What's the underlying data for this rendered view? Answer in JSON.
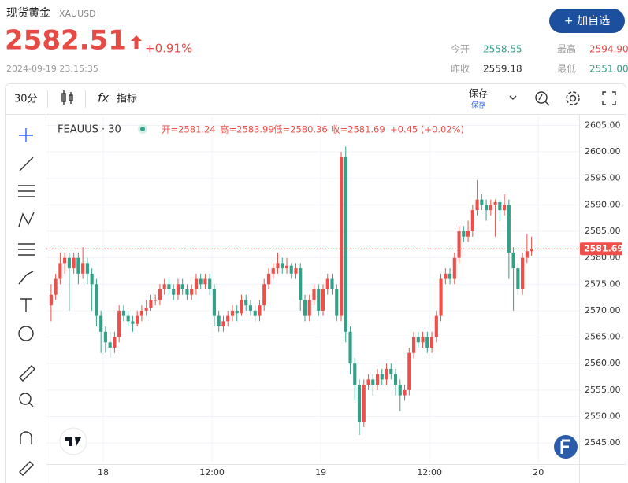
{
  "header": {
    "title": "现货黄金",
    "symbol": "XAUUSD",
    "price": "2582.51",
    "change": "+0.91%",
    "timestamp": "2024-09-19 23:15:35",
    "button": "+ 加自选",
    "stats": [
      {
        "label": "今开",
        "value": "2558.55"
      },
      {
        "label": "最高",
        "value": "2594.90"
      },
      {
        "label": "昨收",
        "value": "2559.18"
      },
      {
        "label": "最低",
        "value": "2551.00"
      }
    ]
  },
  "toolbar": {
    "interval": "30分",
    "indicators_icon": "fx",
    "indicators": "指标",
    "save": "保存",
    "save_sub": "保存"
  },
  "chart_data": {
    "type": "candlestick",
    "title": "FEAUUS · 30",
    "ohlc_legend": [
      "开=2581.24",
      "高=2583.99",
      "低=2580.36",
      "收=2581.69",
      "+0.45 (+0.02%)"
    ],
    "up_color": "#ef4f4a",
    "down_color": "#34a088",
    "grid": true,
    "x": [
      0,
      1,
      2,
      3,
      4,
      5,
      6,
      7,
      8,
      9,
      10,
      11,
      12,
      13,
      14,
      15,
      16,
      17,
      18,
      19,
      20,
      21,
      22,
      23,
      24,
      25,
      26,
      27,
      28,
      29,
      30,
      31,
      32,
      33,
      34,
      35,
      36,
      37,
      38,
      39,
      40,
      41,
      42,
      43,
      44,
      45,
      46,
      47,
      48,
      49,
      50,
      51,
      52,
      53,
      54,
      55,
      56,
      57,
      58,
      59,
      60,
      61,
      62,
      63,
      64,
      65,
      66,
      67,
      68,
      69,
      70,
      71,
      72,
      73,
      74,
      75,
      76,
      77,
      78,
      79,
      80,
      81,
      82,
      83,
      84,
      85,
      86,
      87,
      88,
      89,
      90,
      91,
      92,
      93,
      94,
      95,
      96,
      97,
      98,
      99,
      100,
      101,
      102,
      103,
      104,
      105,
      106
    ],
    "open": [
      2571,
      2573,
      2576,
      2579,
      2580,
      2578,
      2580,
      2577,
      2579,
      2577,
      2575,
      2569,
      2566,
      2564,
      2563,
      2565,
      2570,
      2569,
      2568,
      2567.5,
      2569,
      2570,
      2570.5,
      2572,
      2572,
      2574,
      2575,
      2574,
      2573,
      2575,
      2574,
      2573,
      2574,
      2576,
      2575,
      2576,
      2574,
      2569,
      2567,
      2568,
      2569,
      2570,
      2569.5,
      2572,
      2571,
      2570,
      2569,
      2571,
      2575,
      2577,
      2578,
      2579,
      2578,
      2578.5,
      2577,
      2578,
      2572,
      2569,
      2572,
      2574,
      2570,
      2574,
      2576,
      2574,
      2569,
      2599,
      2566,
      2560,
      2556,
      2549,
      2556,
      2557,
      2556,
      2558,
      2557,
      2559,
      2558,
      2556,
      2554,
      2555,
      2562,
      2565,
      2564,
      2565,
      2563,
      2565,
      2569,
      2576,
      2577,
      2576,
      2580,
      2585,
      2584,
      2585,
      2589,
      2591,
      2590,
      2589,
      2590,
      2590.5,
      2589,
      2590,
      2581,
      2578,
      2574,
      2580,
      2581.24
    ],
    "high": [
      2575,
      2577,
      2581,
      2581,
      2581,
      2581,
      2581,
      2582,
      2580,
      2578,
      2576,
      2570,
      2567,
      2566,
      2566,
      2571,
      2571,
      2570,
      2569,
      2570,
      2571,
      2572,
      2573,
      2573,
      2575,
      2576,
      2576,
      2575,
      2576,
      2576,
      2575,
      2575,
      2577,
      2577,
      2577,
      2577,
      2575,
      2570,
      2569,
      2570,
      2571,
      2571,
      2573,
      2573,
      2572,
      2571,
      2572,
      2576,
      2578,
      2579,
      2581,
      2580,
      2580,
      2579,
      2579,
      2579,
      2573,
      2573,
      2575,
      2575,
      2575,
      2577,
      2577,
      2575,
      2600,
      2601,
      2567,
      2561,
      2557,
      2557,
      2558,
      2558,
      2559,
      2559,
      2560,
      2560,
      2559,
      2557,
      2556,
      2563,
      2566,
      2566,
      2566,
      2566,
      2566,
      2570,
      2577,
      2578,
      2578,
      2581,
      2586,
      2586,
      2587,
      2590,
      2594.7,
      2592,
      2591,
      2591,
      2591,
      2591,
      2592,
      2591,
      2582,
      2579,
      2581,
      2584.5,
      2583.99
    ],
    "low": [
      2568,
      2572,
      2575,
      2577,
      2570,
      2577,
      2575,
      2576,
      2575,
      2570,
      2567,
      2562,
      2562,
      2561,
      2562,
      2564,
      2568,
      2567,
      2566,
      2567,
      2568,
      2569,
      2570,
      2571,
      2571,
      2573,
      2573,
      2572,
      2572,
      2573,
      2572,
      2572,
      2573,
      2574,
      2574,
      2573,
      2567,
      2566,
      2566,
      2567,
      2568,
      2568,
      2569,
      2570,
      2569,
      2568,
      2568,
      2570,
      2574,
      2576,
      2577,
      2577,
      2577,
      2576,
      2576,
      2570,
      2568,
      2568,
      2571,
      2569,
      2569,
      2573,
      2573,
      2568,
      2568,
      2564,
      2558,
      2553,
      2546.5,
      2548,
      2555,
      2554,
      2555,
      2556,
      2556,
      2557,
      2554,
      2551,
      2553,
      2554,
      2561,
      2563,
      2563,
      2562,
      2562,
      2564,
      2568,
      2575,
      2575,
      2575,
      2579,
      2583,
      2583,
      2584,
      2588,
      2589,
      2587,
      2588,
      2584,
      2587,
      2588,
      2576,
      2570,
      2573,
      2573,
      2579,
      2580.36
    ],
    "close": [
      2573,
      2576,
      2579,
      2580,
      2578,
      2580,
      2577,
      2579,
      2577,
      2575,
      2569,
      2566,
      2564,
      2563,
      2565,
      2570,
      2569,
      2568,
      2567.5,
      2569,
      2570,
      2570.5,
      2572,
      2572,
      2574,
      2575,
      2574,
      2573,
      2575,
      2574,
      2573,
      2574,
      2576,
      2575,
      2576,
      2574,
      2569,
      2567,
      2568,
      2569,
      2570,
      2569.5,
      2572,
      2571,
      2570,
      2569,
      2571,
      2575,
      2577,
      2578,
      2579,
      2578,
      2578.5,
      2577,
      2578,
      2572,
      2569,
      2572,
      2574,
      2570,
      2574,
      2576,
      2574,
      2569,
      2599,
      2566,
      2560,
      2556,
      2549,
      2556,
      2557,
      2556,
      2558,
      2557,
      2559,
      2558,
      2556,
      2554,
      2555,
      2562,
      2565,
      2564,
      2565,
      2563,
      2565,
      2569,
      2576,
      2577,
      2576,
      2580,
      2585,
      2584,
      2585,
      2589,
      2591,
      2590,
      2589,
      2590,
      2590.5,
      2589,
      2590,
      2581,
      2578,
      2574,
      2580,
      2581.24,
      2581.69
    ],
    "last_price": 2581.69,
    "xlim": [
      0,
      117
    ],
    "xticks": [
      {
        "value": 12,
        "label": "18"
      },
      {
        "value": 36,
        "label": "12:00"
      },
      {
        "value": 60,
        "label": "19"
      },
      {
        "value": 84,
        "label": "12:00"
      },
      {
        "value": 108,
        "label": "20"
      }
    ],
    "ylim": [
      2541,
      2607
    ],
    "yticks": [
      {
        "value": 2545,
        "label": "2545.00"
      },
      {
        "value": 2550,
        "label": "2550.00"
      },
      {
        "value": 2555,
        "label": "2555.00"
      },
      {
        "value": 2560,
        "label": "2560.00"
      },
      {
        "value": 2565,
        "label": "2565.00"
      },
      {
        "value": 2570,
        "label": "2570.00"
      },
      {
        "value": 2575,
        "label": "2575.00"
      },
      {
        "value": 2580,
        "label": "2580.00"
      },
      {
        "value": 2585,
        "label": "2585.00"
      },
      {
        "value": 2590,
        "label": "2590.00"
      },
      {
        "value": 2595,
        "label": "2595.00"
      },
      {
        "value": 2600,
        "label": "2600.00"
      },
      {
        "value": 2605,
        "label": "2605.00"
      }
    ]
  }
}
